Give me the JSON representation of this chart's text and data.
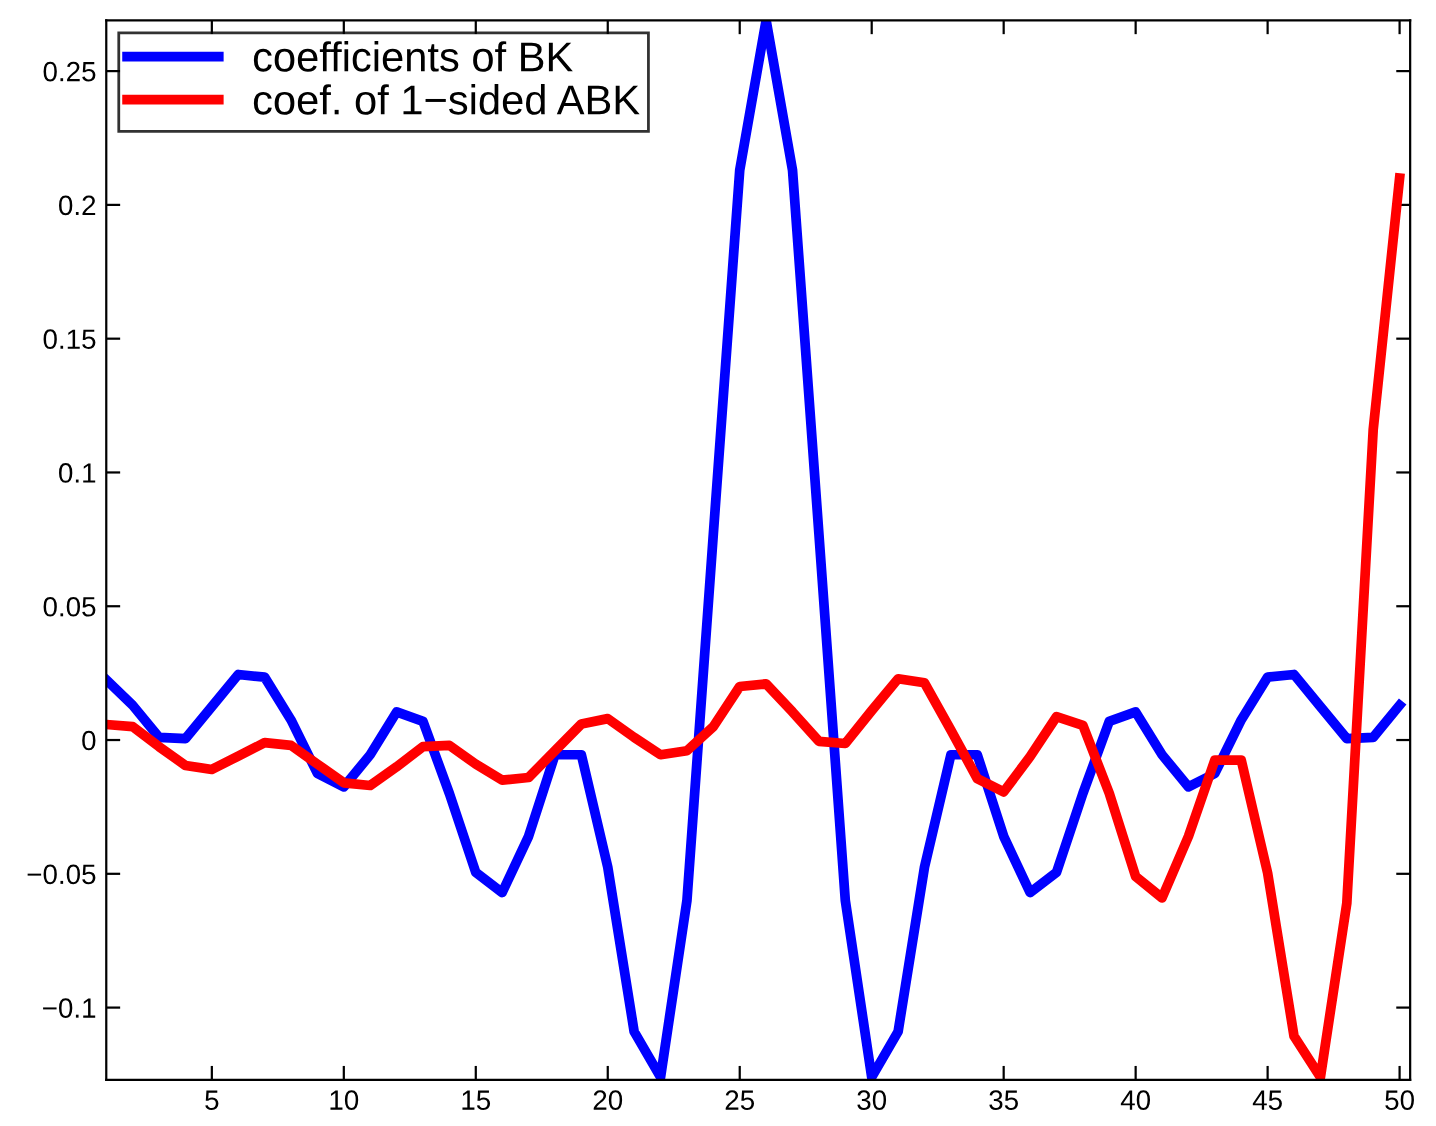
{
  "chart_data": {
    "type": "line",
    "x": [
      1,
      2,
      3,
      4,
      5,
      6,
      7,
      8,
      9,
      10,
      11,
      12,
      13,
      14,
      15,
      16,
      17,
      18,
      19,
      20,
      21,
      22,
      23,
      24,
      25,
      26,
      27,
      28,
      29,
      30,
      31,
      32,
      33,
      34,
      35,
      36,
      37,
      38,
      39,
      40,
      41,
      42,
      43,
      44,
      45,
      46,
      47,
      48,
      49,
      50
    ],
    "series": [
      {
        "name": "coefficients of BK",
        "color": "#0000ff",
        "values": [
          0.0225,
          0.013,
          0.001,
          0.0005,
          0.0125,
          0.0245,
          0.0235,
          0.0075,
          -0.0125,
          -0.0175,
          -0.0055,
          0.0105,
          0.007,
          -0.02,
          -0.0495,
          -0.057,
          -0.036,
          -0.0055,
          -0.0055,
          -0.0475,
          -0.109,
          -0.126,
          -0.06,
          0.077,
          0.213,
          0.269,
          0.213,
          0.077,
          -0.06,
          -0.126,
          -0.109,
          -0.0475,
          -0.0055,
          -0.0055,
          -0.036,
          -0.057,
          -0.0495,
          -0.02,
          0.007,
          0.0105,
          -0.0055,
          -0.0175,
          -0.0125,
          0.0075,
          0.0235,
          0.0245,
          0.0125,
          0.0005,
          0.001,
          0.013
        ]
      },
      {
        "name": "coef. of 1−sided ABK",
        "color": "#ff0000",
        "values": [
          0.0058,
          0.005,
          -0.0025,
          -0.0095,
          -0.011,
          -0.006,
          -0.001,
          -0.002,
          -0.009,
          -0.016,
          -0.017,
          -0.01,
          -0.0025,
          -0.002,
          -0.009,
          -0.015,
          -0.014,
          -0.004,
          0.006,
          0.008,
          0.001,
          -0.0055,
          -0.004,
          0.005,
          0.02,
          0.021,
          0.0105,
          -0.0005,
          -0.0013,
          0.011,
          0.0229,
          0.0214,
          0.0037,
          -0.0144,
          -0.0194,
          -0.0062,
          0.0087,
          0.0055,
          -0.0199,
          -0.051,
          -0.059,
          -0.036,
          -0.0075,
          -0.0075,
          -0.0497,
          -0.1107,
          -0.126,
          -0.061,
          0.116,
          0.21
        ]
      }
    ],
    "xlim": [
      1,
      50.4
    ],
    "ylim": [
      -0.127,
      0.269
    ],
    "xticks": [
      5,
      10,
      15,
      20,
      25,
      30,
      35,
      40,
      45,
      50
    ],
    "yticks": [
      {
        "value": -0.1,
        "label": "−0.1"
      },
      {
        "value": -0.05,
        "label": "−0.05"
      },
      0,
      0.05,
      0.1,
      0.15,
      0.2,
      0.25
    ],
    "legend": "top left",
    "grid": false,
    "marker": "none",
    "line_style": "solid"
  }
}
